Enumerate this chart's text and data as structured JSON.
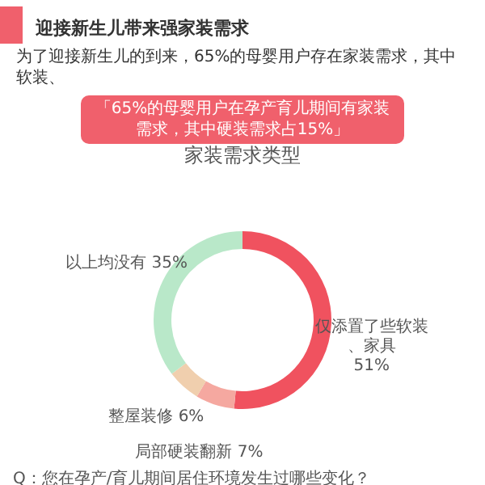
{
  "chart_data": {
    "type": "donut",
    "title": "家装需求类型",
    "categories": [
      "仅添置了些软装、家具",
      "局部硬装翻新",
      "整屋装修",
      "以上均没有"
    ],
    "values": [
      51,
      7,
      6,
      35
    ],
    "value_labels": [
      "51%",
      "7%",
      "6%",
      "35%"
    ],
    "colors": [
      "#f0525f",
      "#f5a8a0",
      "#f0cfae",
      "#b9e8c9"
    ],
    "annotations": [
      "迎接新生儿带来强家装需求",
      "为了迎接新生儿的到来，65%的母婴用户存在家装需求，其中软装、",
      "「65%的母婴用户在孕产育儿期间有家装需求，其中硬装需求占15%」",
      "Q：您在孕产/育儿期间居住环境发生过哪些变化？"
    ]
  }
}
